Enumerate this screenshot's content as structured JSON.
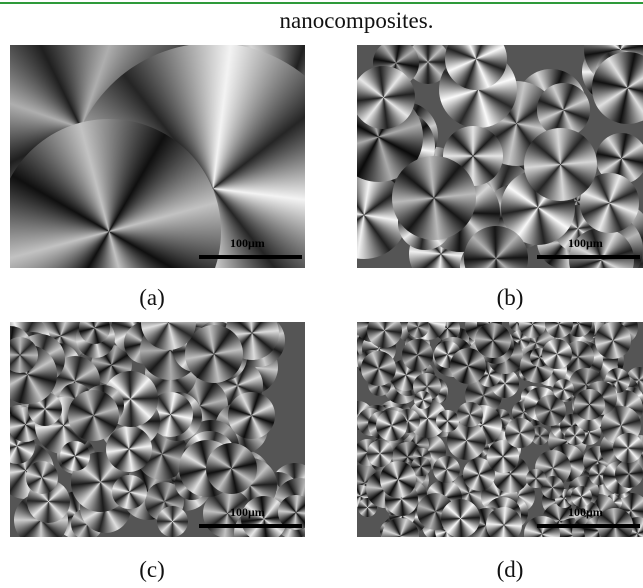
{
  "header": {
    "text": "nanocomposites."
  },
  "panels": [
    {
      "label": "(a)",
      "scale_bar": "100μm"
    },
    {
      "label": "(b)",
      "scale_bar": "100μm"
    },
    {
      "label": "(c)",
      "scale_bar": "100μm"
    },
    {
      "label": "(d)",
      "scale_bar": "100μm"
    }
  ]
}
